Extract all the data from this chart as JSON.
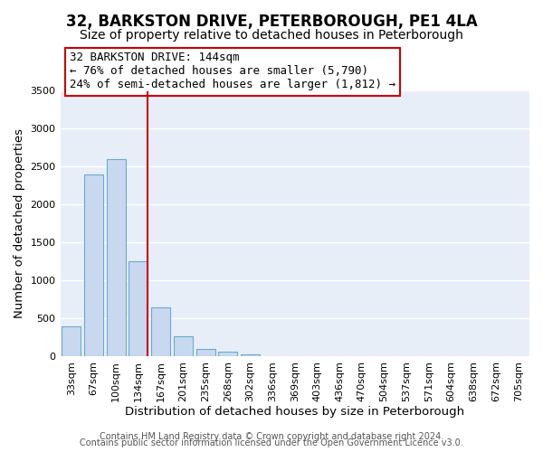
{
  "title": "32, BARKSTON DRIVE, PETERBOROUGH, PE1 4LA",
  "subtitle": "Size of property relative to detached houses in Peterborough",
  "xlabel": "Distribution of detached houses by size in Peterborough",
  "ylabel": "Number of detached properties",
  "bar_labels": [
    "33sqm",
    "67sqm",
    "100sqm",
    "134sqm",
    "167sqm",
    "201sqm",
    "235sqm",
    "268sqm",
    "302sqm",
    "336sqm",
    "369sqm",
    "403sqm",
    "436sqm",
    "470sqm",
    "504sqm",
    "537sqm",
    "571sqm",
    "604sqm",
    "638sqm",
    "672sqm",
    "705sqm"
  ],
  "bar_values": [
    400,
    2400,
    2600,
    1250,
    650,
    260,
    100,
    55,
    30,
    0,
    0,
    0,
    0,
    0,
    0,
    0,
    0,
    0,
    0,
    0,
    0
  ],
  "bar_color": "#c8d9ef",
  "bar_edge_color": "#6aaad4",
  "vline_color": "#cc0000",
  "ylim": [
    0,
    3500
  ],
  "annotation_text": "32 BARKSTON DRIVE: 144sqm\n← 76% of detached houses are smaller (5,790)\n24% of semi-detached houses are larger (1,812) →",
  "annotation_box_color": "#ffffff",
  "annotation_box_edge": "#cc0000",
  "footer1": "Contains HM Land Registry data © Crown copyright and database right 2024.",
  "footer2": "Contains public sector information licensed under the Open Government Licence v3.0.",
  "title_fontsize": 12,
  "subtitle_fontsize": 10,
  "axis_label_fontsize": 9.5,
  "tick_fontsize": 8,
  "annotation_fontsize": 9,
  "footer_fontsize": 7,
  "plot_bg_color": "#e8eef8",
  "fig_bg_color": "#ffffff",
  "grid_color": "#ffffff"
}
